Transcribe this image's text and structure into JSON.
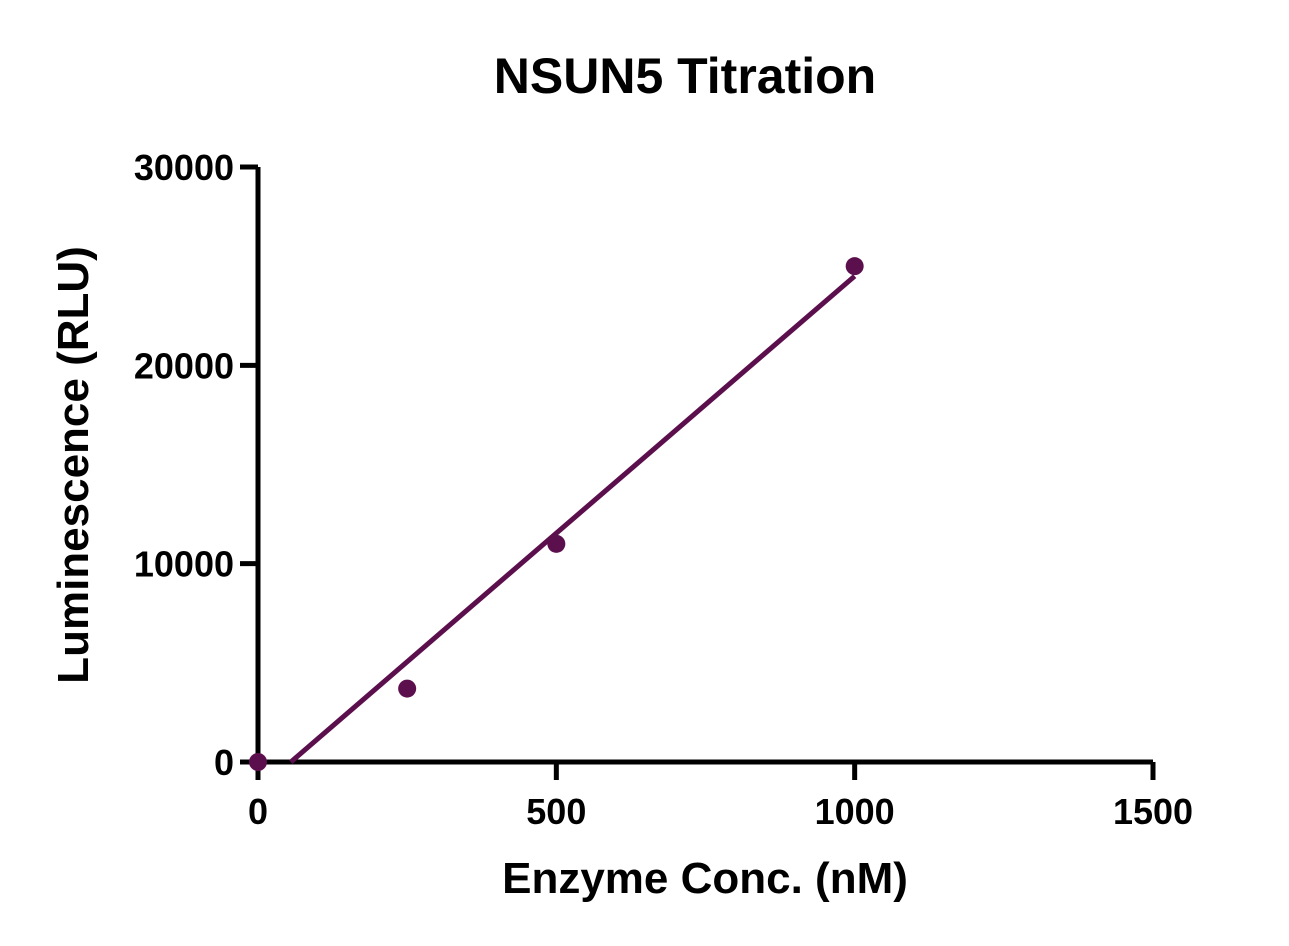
{
  "chart_data": {
    "type": "scatter",
    "title": "NSUN5 Titration",
    "xlabel": "Enzyme Conc. (nM)",
    "ylabel": "Luminescence (RLU)",
    "xlim": [
      0,
      1500
    ],
    "ylim": [
      0,
      30000
    ],
    "x_ticks": [
      0,
      500,
      1000,
      1500
    ],
    "x_tick_labels": [
      "0",
      "500",
      "1000",
      "1500"
    ],
    "y_ticks": [
      0,
      10000,
      20000,
      30000
    ],
    "y_tick_labels": [
      "0",
      "10000",
      "20000",
      "30000"
    ],
    "grid": false,
    "legend": "none",
    "series": [
      {
        "x": [
          0,
          250,
          500,
          1000
        ],
        "y": [
          0,
          3700,
          11000,
          25000
        ]
      }
    ],
    "fit_line": {
      "type": "linear",
      "x": [
        55,
        1000
      ],
      "y": [
        0,
        24500
      ]
    },
    "colors": {
      "series": "#5c0f4d",
      "axis": "#000000"
    }
  }
}
